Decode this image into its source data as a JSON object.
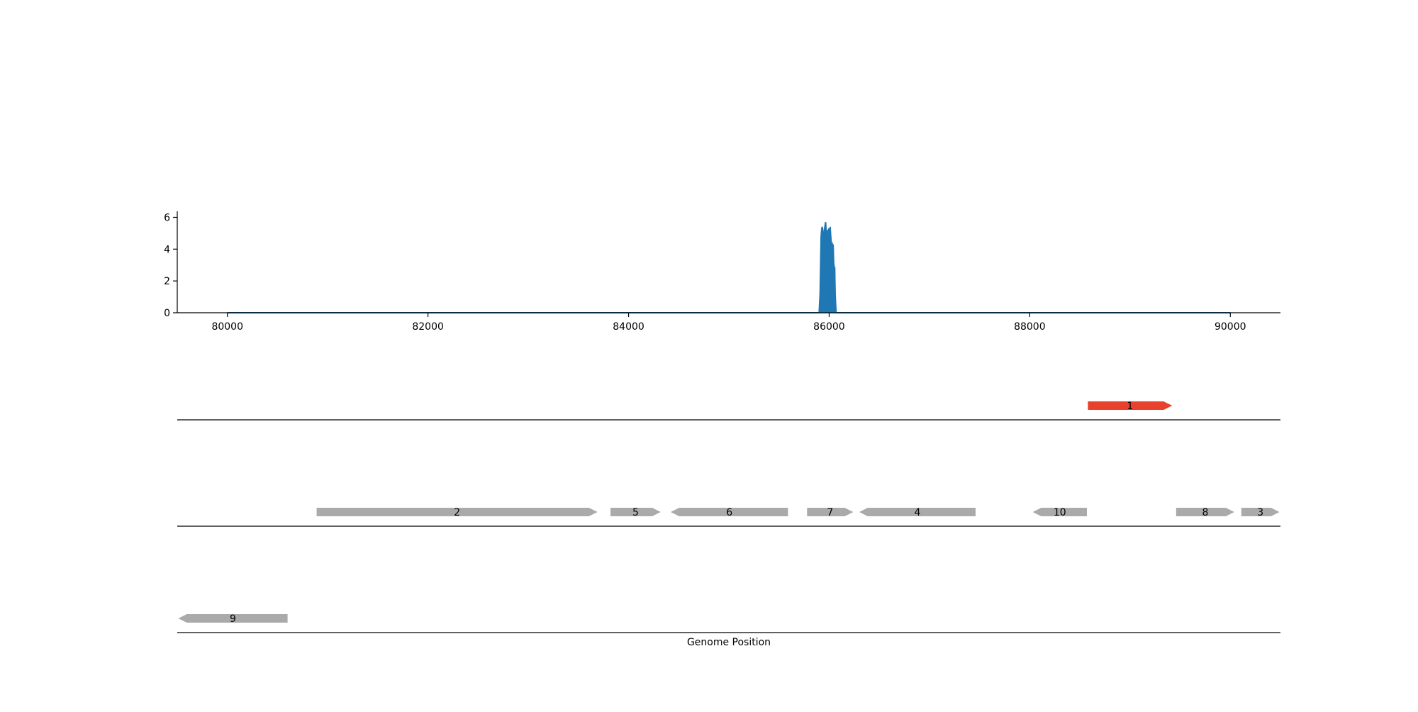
{
  "chart_data": [
    {
      "type": "area",
      "title": "",
      "xlabel": "",
      "ylabel": "",
      "xlim": [
        79500,
        90500
      ],
      "ylim": [
        0,
        6.2
      ],
      "xticks": [
        80000,
        82000,
        84000,
        86000,
        88000,
        90000
      ],
      "yticks": [
        0,
        2,
        4,
        6
      ],
      "grid": false,
      "color": "#1f77b4",
      "series": [
        {
          "x": [
            80000,
            85900,
            85910,
            85915,
            85920,
            85925,
            85930,
            85935,
            85940,
            85945,
            85950,
            85955,
            85960,
            85965,
            85970,
            85975,
            85980,
            85985,
            85990,
            85995,
            86000,
            86005,
            86010,
            86015,
            86020,
            86025,
            86030,
            86035,
            86040,
            86045,
            86050,
            86055,
            86060,
            86065,
            86070,
            86075,
            86080,
            90000
          ],
          "values": [
            0,
            0,
            1.2,
            3.0,
            4.8,
            5.2,
            5.4,
            5.3,
            4.9,
            4.2,
            5.0,
            5.3,
            5.5,
            5.7,
            5.1,
            4.5,
            4.9,
            5.2,
            4.6,
            5.3,
            5.0,
            4.7,
            5.4,
            4.9,
            4.5,
            4.3,
            4.4,
            4.0,
            4.3,
            3.2,
            2.8,
            2.9,
            1.2,
            0.5,
            0,
            0,
            0,
            0
          ]
        }
      ]
    },
    {
      "type": "gene-track",
      "xlabel": "Genome Position",
      "xlim": [
        79500,
        90500
      ],
      "genes": [
        {
          "label": "1",
          "start": 88580,
          "end": 89420,
          "strand": "+",
          "track": 0,
          "color": "#e8412c"
        },
        {
          "label": "2",
          "start": 80890,
          "end": 83690,
          "strand": "+",
          "track": 1,
          "color": "#aaaaaa"
        },
        {
          "label": "5",
          "start": 83820,
          "end": 84320,
          "strand": "+",
          "track": 1,
          "color": "#aaaaaa"
        },
        {
          "label": "6",
          "start": 84420,
          "end": 85590,
          "strand": "-",
          "track": 1,
          "color": "#aaaaaa"
        },
        {
          "label": "7",
          "start": 85780,
          "end": 86240,
          "strand": "+",
          "track": 1,
          "color": "#aaaaaa"
        },
        {
          "label": "4",
          "start": 86300,
          "end": 87460,
          "strand": "-",
          "track": 1,
          "color": "#aaaaaa"
        },
        {
          "label": "10",
          "start": 88030,
          "end": 88570,
          "strand": "-",
          "track": 1,
          "color": "#aaaaaa"
        },
        {
          "label": "8",
          "start": 89460,
          "end": 90040,
          "strand": "+",
          "track": 1,
          "color": "#aaaaaa"
        },
        {
          "label": "3",
          "start": 90110,
          "end": 90490,
          "strand": "+",
          "track": 1,
          "color": "#aaaaaa"
        },
        {
          "label": "9",
          "start": 79510,
          "end": 80600,
          "strand": "-",
          "track": 2,
          "color": "#aaaaaa"
        }
      ]
    }
  ]
}
